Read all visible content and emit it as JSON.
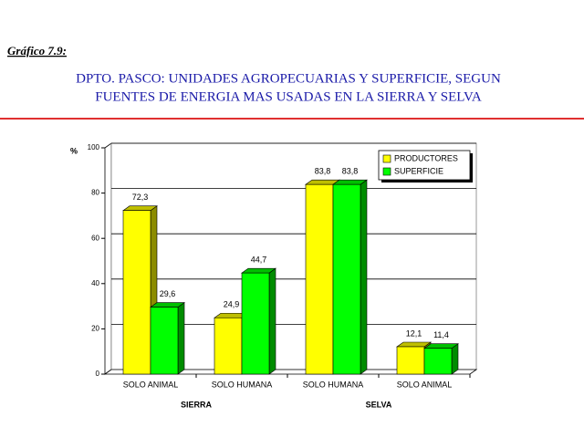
{
  "chart_data": {
    "type": "bar3d",
    "label": "Gráfico 7.9:",
    "title": [
      "DPTO. PASCO: UNIDADES AGROPECUARIAS Y SUPERFICIE, SEGUN",
      "FUENTES DE ENERGIA MAS USADAS EN LA SIERRA Y SELVA"
    ],
    "ylabel": "%",
    "categories": [
      "SOLO ANIMAL",
      "SOLO HUMANA",
      "SOLO HUMANA",
      "SOLO ANIMAL"
    ],
    "groups": [
      "SIERRA",
      "SELVA"
    ],
    "series": [
      {
        "name": "PRODUCTORES",
        "color": "#ffff00",
        "values": [
          72.3,
          24.9,
          83.8,
          12.1
        ],
        "value_labels": [
          "72,3",
          "24,9",
          "83,8",
          "12,1"
        ]
      },
      {
        "name": "SUPERFICIE",
        "color": "#00ff00",
        "values": [
          29.6,
          44.7,
          83.8,
          11.4
        ],
        "value_labels": [
          "29,6",
          "44,7",
          "83,8",
          "11,4"
        ]
      }
    ],
    "ylim": [
      0,
      100
    ],
    "yticks": [
      0,
      20,
      40,
      60,
      80,
      100
    ],
    "grid": true,
    "legend": "top-right"
  }
}
